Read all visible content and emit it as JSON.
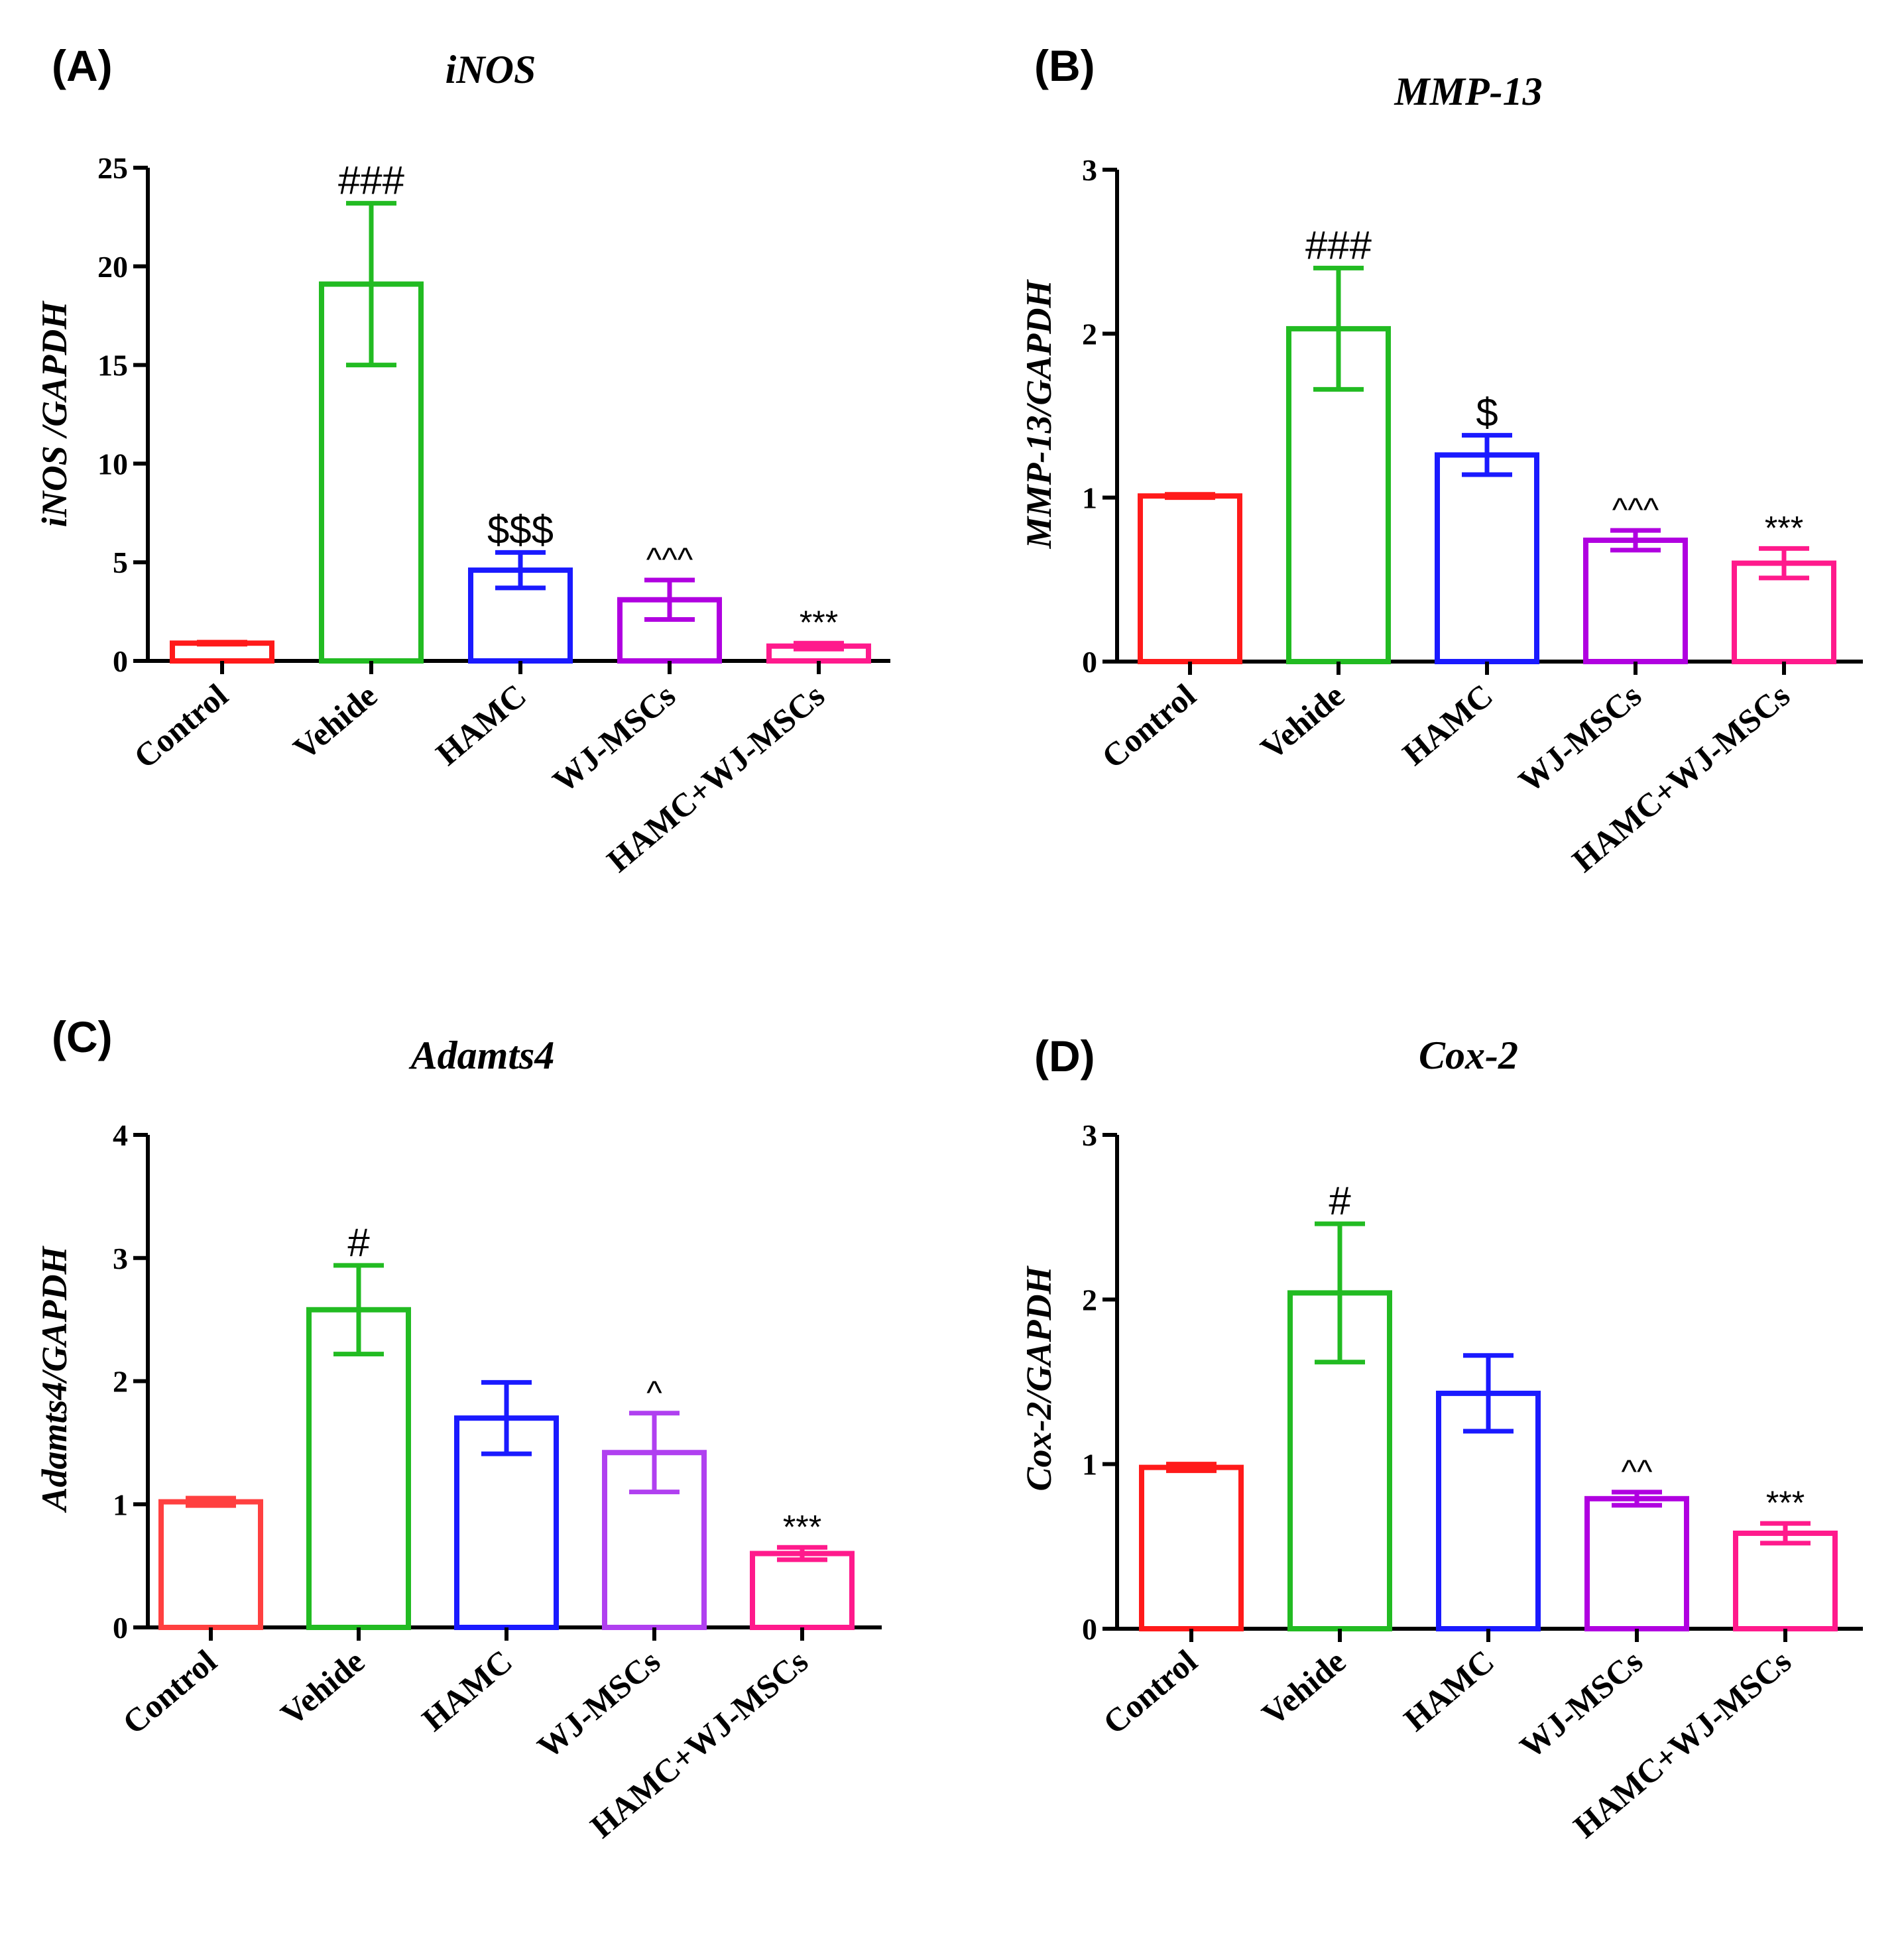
{
  "chart_data": [
    {
      "type": "bar",
      "panel_label": "(A)",
      "title": "iNOS",
      "ylabel": "iNOS /GAPDH",
      "xlabel": "",
      "ylim": [
        0,
        25
      ],
      "yticks": [
        "0",
        "5",
        "10",
        "15",
        "20",
        "25"
      ],
      "categories": [
        "Control",
        "Vehide",
        "HAMC",
        "WJ-MSCs",
        "HAMC+WJ-MSCs"
      ],
      "values": [
        0.9,
        19.1,
        4.6,
        3.1,
        0.75
      ],
      "errors": [
        0.05,
        4.1,
        0.9,
        1.0,
        0.15
      ],
      "significance": [
        "",
        "###",
        "$$$",
        "^^^",
        "***"
      ],
      "colors": [
        "#ff1a1a",
        "#22bb22",
        "#1a1aff",
        "#b000e0",
        "#ff1a8c"
      ]
    },
    {
      "type": "bar",
      "panel_label": "(B)",
      "title": "MMP-13",
      "ylabel": "MMP-13/GAPDH",
      "xlabel": "",
      "ylim": [
        0,
        3
      ],
      "yticks": [
        "0",
        "1",
        "2",
        "3"
      ],
      "categories": [
        "Control",
        "Vehide",
        "HAMC",
        "WJ-MSCs",
        "HAMC+WJ-MSCs"
      ],
      "values": [
        1.01,
        2.03,
        1.26,
        0.74,
        0.6
      ],
      "errors": [
        0.01,
        0.37,
        0.12,
        0.06,
        0.09
      ],
      "significance": [
        "",
        "###",
        "$",
        "^^^",
        "***"
      ],
      "colors": [
        "#ff1a1a",
        "#22bb22",
        "#1a1aff",
        "#b000e0",
        "#ff1a8c"
      ]
    },
    {
      "type": "bar",
      "panel_label": "(C)",
      "title": "Adamts4",
      "ylabel": "Adamts4/GAPDH",
      "xlabel": "",
      "ylim": [
        0,
        4
      ],
      "yticks": [
        "0",
        "1",
        "2",
        "3",
        "4"
      ],
      "categories": [
        "Control",
        "Vehide",
        "HAMC",
        "WJ-MSCs",
        "HAMC+WJ-MSCs"
      ],
      "values": [
        1.02,
        2.58,
        1.7,
        1.42,
        0.6
      ],
      "errors": [
        0.03,
        0.36,
        0.29,
        0.32,
        0.05
      ],
      "significance": [
        "",
        "#",
        "",
        "^",
        "***"
      ],
      "colors": [
        "#ff4040",
        "#22bb22",
        "#1a1aff",
        "#b040f0",
        "#ff1a8c"
      ]
    },
    {
      "type": "bar",
      "panel_label": "(D)",
      "title": "Cox-2",
      "ylabel": "Cox-2/GAPDH",
      "xlabel": "",
      "ylim": [
        0,
        3
      ],
      "yticks": [
        "0",
        "1",
        "2",
        "3"
      ],
      "categories": [
        "Control",
        "Vehide",
        "HAMC",
        "WJ-MSCs",
        "HAMC+WJ-MSCs"
      ],
      "values": [
        0.98,
        2.04,
        1.43,
        0.79,
        0.58
      ],
      "errors": [
        0.02,
        0.42,
        0.23,
        0.04,
        0.06
      ],
      "significance": [
        "",
        "#",
        "",
        "^^",
        "***"
      ],
      "colors": [
        "#ff1a1a",
        "#22bb22",
        "#1a1aff",
        "#b000e0",
        "#ff1a8c"
      ]
    }
  ]
}
